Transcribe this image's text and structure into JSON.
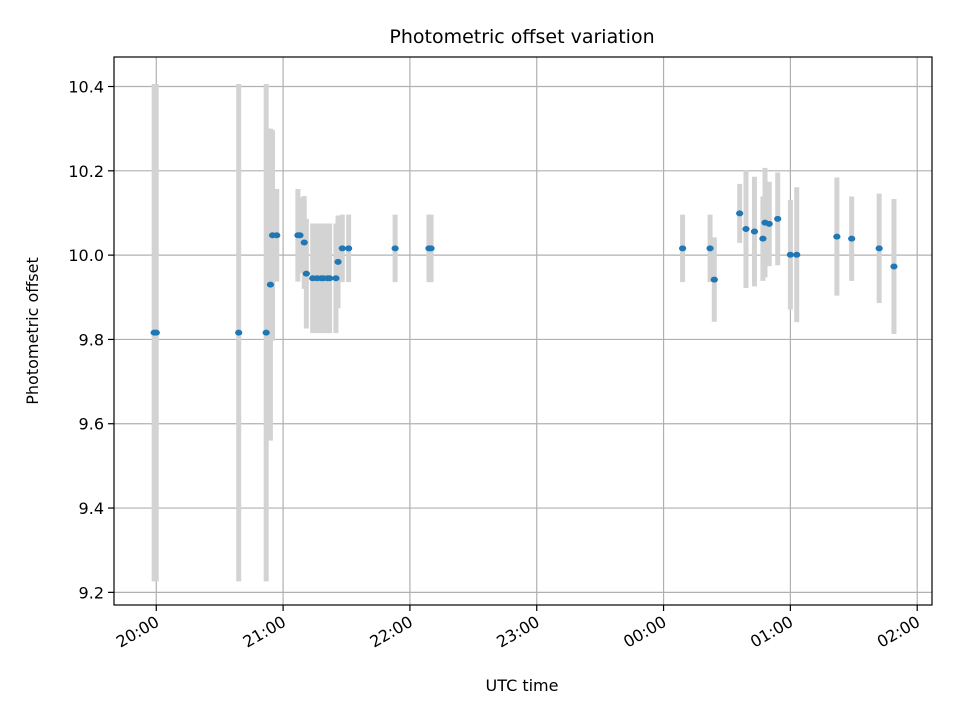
{
  "chart_data": {
    "type": "scatter",
    "title": "Photometric offset variation",
    "xlabel": "UTC time",
    "ylabel": "Photometric offset",
    "x_axis_type": "time",
    "x_range": [
      "19:40",
      "02:07"
    ],
    "ylim": [
      9.17,
      10.47
    ],
    "grid": true,
    "x_ticks": [
      "20:00",
      "21:00",
      "22:00",
      "23:00",
      "00:00",
      "01:00",
      "02:00"
    ],
    "y_ticks": [
      "9.2",
      "9.4",
      "9.6",
      "9.8",
      "10.0",
      "10.2",
      "10.4"
    ],
    "colors": {
      "point": "#1f77b4",
      "errorbar": "#d3d3d3",
      "grid": "#b0b0b0"
    },
    "points": [
      {
        "x": "19:59",
        "y": 9.816,
        "err": 0.59
      },
      {
        "x": "20:00",
        "y": 9.816,
        "err": 0.59
      },
      {
        "x": "20:39",
        "y": 9.816,
        "err": 0.59
      },
      {
        "x": "20:52",
        "y": 9.816,
        "err": 0.59
      },
      {
        "x": "20:54",
        "y": 9.93,
        "err": 0.37
      },
      {
        "x": "20:55",
        "y": 10.047,
        "err": 0.25
      },
      {
        "x": "20:57",
        "y": 10.047,
        "err": 0.11
      },
      {
        "x": "21:07",
        "y": 10.047,
        "err": 0.11
      },
      {
        "x": "21:08",
        "y": 10.047,
        "err": 0.09
      },
      {
        "x": "21:10",
        "y": 10.03,
        "err": 0.11
      },
      {
        "x": "21:11",
        "y": 9.956,
        "err": 0.13
      },
      {
        "x": "21:14",
        "y": 9.945,
        "err": 0.13
      },
      {
        "x": "21:16",
        "y": 9.945,
        "err": 0.13
      },
      {
        "x": "21:18",
        "y": 9.945,
        "err": 0.13
      },
      {
        "x": "21:19",
        "y": 9.945,
        "err": 0.13
      },
      {
        "x": "21:21",
        "y": 9.945,
        "err": 0.13
      },
      {
        "x": "21:22",
        "y": 9.945,
        "err": 0.13
      },
      {
        "x": "21:25",
        "y": 9.945,
        "err": 0.13
      },
      {
        "x": "21:26",
        "y": 9.984,
        "err": 0.11
      },
      {
        "x": "21:28",
        "y": 10.016,
        "err": 0.08
      },
      {
        "x": "21:31",
        "y": 10.016,
        "err": 0.08
      },
      {
        "x": "21:53",
        "y": 10.016,
        "err": 0.08
      },
      {
        "x": "22:09",
        "y": 10.016,
        "err": 0.08
      },
      {
        "x": "22:10",
        "y": 10.016,
        "err": 0.08
      },
      {
        "x": "00:09",
        "y": 10.016,
        "err": 0.08
      },
      {
        "x": "00:22",
        "y": 10.016,
        "err": 0.08
      },
      {
        "x": "00:24",
        "y": 9.942,
        "err": 0.1
      },
      {
        "x": "00:36",
        "y": 10.099,
        "err": 0.07
      },
      {
        "x": "00:39",
        "y": 10.062,
        "err": 0.14
      },
      {
        "x": "00:43",
        "y": 10.056,
        "err": 0.13
      },
      {
        "x": "00:47",
        "y": 10.039,
        "err": 0.1
      },
      {
        "x": "00:48",
        "y": 10.077,
        "err": 0.13
      },
      {
        "x": "00:50",
        "y": 10.074,
        "err": 0.1
      },
      {
        "x": "00:54",
        "y": 10.086,
        "err": 0.11
      },
      {
        "x": "01:00",
        "y": 10.001,
        "err": 0.13
      },
      {
        "x": "01:03",
        "y": 10.001,
        "err": 0.16
      },
      {
        "x": "01:22",
        "y": 10.044,
        "err": 0.14
      },
      {
        "x": "01:29",
        "y": 10.039,
        "err": 0.1
      },
      {
        "x": "01:42",
        "y": 10.016,
        "err": 0.13
      },
      {
        "x": "01:49",
        "y": 9.973,
        "err": 0.16
      }
    ]
  }
}
